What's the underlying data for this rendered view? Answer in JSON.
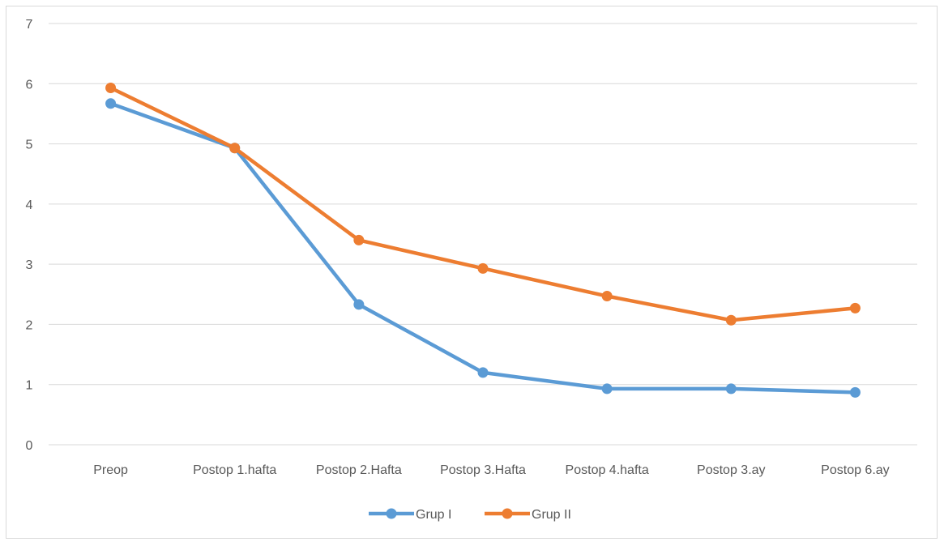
{
  "chart_data": {
    "type": "line",
    "categories": [
      "Preop",
      "Postop 1.hafta",
      "Postop 2.Hafta",
      "Postop 3.Hafta",
      "Postop 4.hafta",
      "Postop 3.ay",
      "Postop 6.ay"
    ],
    "series": [
      {
        "name": "Grup I",
        "color": "#5b9bd5",
        "values": [
          5.67,
          4.93,
          2.33,
          1.2,
          0.93,
          0.93,
          0.87
        ]
      },
      {
        "name": "Grup II",
        "color": "#ed7d31",
        "values": [
          5.93,
          4.93,
          3.4,
          2.93,
          2.47,
          2.07,
          2.27
        ]
      }
    ],
    "ylim": [
      0,
      7
    ],
    "yticks": [
      "0",
      "1",
      "2",
      "3",
      "4",
      "5",
      "6",
      "7"
    ],
    "grid": true,
    "legend": "bottom-center",
    "gridColor": "#d9d9d9"
  }
}
